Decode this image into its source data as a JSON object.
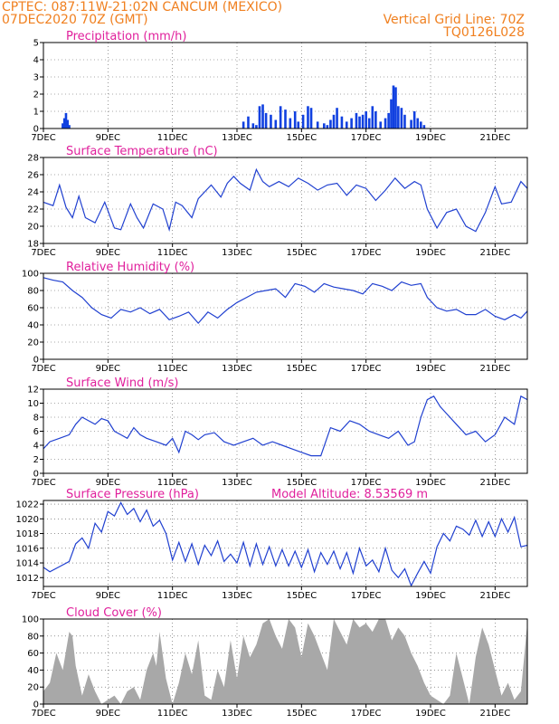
{
  "header": {
    "line1": "CPTEC:   087:11W-21:02N  CANCUM (MEXICO)",
    "line2": "07DEC2020 70Z (GMT)",
    "grid_note": "Vertical Grid Line: 70Z",
    "code": "TQ0126L028"
  },
  "colors": {
    "header": "#f08020",
    "title": "#e0209c",
    "line": "#2040d0",
    "bar": "#1040e0",
    "cloud": "#a8a8a8"
  },
  "chart_data": [
    {
      "id": "precip",
      "type": "bar",
      "title": "Precipitation (mm/h)",
      "xticks": [
        "7DEC",
        "9DEC",
        "11DEC",
        "13DEC",
        "15DEC",
        "17DEC",
        "19DEC",
        "21DEC"
      ],
      "ylim": [
        0,
        5
      ],
      "yticks": [
        0,
        1,
        2,
        3,
        4,
        5
      ],
      "x": [
        7.6,
        7.65,
        7.7,
        7.75,
        7.8,
        13.2,
        13.35,
        13.5,
        13.6,
        13.7,
        13.8,
        13.9,
        14.05,
        14.2,
        14.35,
        14.5,
        14.65,
        14.8,
        14.9,
        15.05,
        15.2,
        15.3,
        15.5,
        15.7,
        15.8,
        15.9,
        16.0,
        16.1,
        16.25,
        16.4,
        16.55,
        16.7,
        16.8,
        16.9,
        17.0,
        17.1,
        17.2,
        17.3,
        17.45,
        17.6,
        17.7,
        17.78,
        17.85,
        17.92,
        18.0,
        18.1,
        18.2,
        18.4,
        18.5,
        18.6,
        18.7,
        18.8
      ],
      "values": [
        0.3,
        0.6,
        0.9,
        0.5,
        0.2,
        0.4,
        0.7,
        0.3,
        0.2,
        1.3,
        1.4,
        0.9,
        0.8,
        0.5,
        1.3,
        1.1,
        0.6,
        1.0,
        0.4,
        0.8,
        1.3,
        1.2,
        0.4,
        0.3,
        0.2,
        0.5,
        0.8,
        1.2,
        0.7,
        0.4,
        0.6,
        0.9,
        0.7,
        0.8,
        1.0,
        0.6,
        1.3,
        1.0,
        0.4,
        0.6,
        0.9,
        1.7,
        2.5,
        2.4,
        1.3,
        1.2,
        0.8,
        0.5,
        1.0,
        0.6,
        0.4,
        0.2
      ]
    },
    {
      "id": "temp",
      "type": "line",
      "title": "Surface Temperature (nC)",
      "xticks": [
        "7DEC",
        "9DEC",
        "11DEC",
        "13DEC",
        "15DEC",
        "17DEC",
        "19DEC",
        "21DEC"
      ],
      "ylim": [
        18,
        28
      ],
      "yticks": [
        18,
        20,
        22,
        24,
        26,
        28
      ],
      "x": [
        7.0,
        7.3,
        7.5,
        7.7,
        7.9,
        8.1,
        8.3,
        8.6,
        8.9,
        9.2,
        9.4,
        9.7,
        9.9,
        10.1,
        10.4,
        10.7,
        10.9,
        11.1,
        11.3,
        11.6,
        11.8,
        12.0,
        12.2,
        12.5,
        12.7,
        12.9,
        13.1,
        13.4,
        13.6,
        13.8,
        14.0,
        14.3,
        14.6,
        14.9,
        15.2,
        15.5,
        15.8,
        16.1,
        16.4,
        16.7,
        17.0,
        17.3,
        17.6,
        17.9,
        18.2,
        18.5,
        18.7,
        18.9,
        19.2,
        19.5,
        19.8,
        20.1,
        20.4,
        20.7,
        21.0,
        21.2,
        21.5,
        21.8,
        22.0
      ],
      "values": [
        22.8,
        22.4,
        24.8,
        22.2,
        21.0,
        23.5,
        21.0,
        20.4,
        22.8,
        19.8,
        19.6,
        22.6,
        21.0,
        19.8,
        22.6,
        22.0,
        19.6,
        22.8,
        22.4,
        21.0,
        23.2,
        24.0,
        24.8,
        23.4,
        25.0,
        25.8,
        25.0,
        24.2,
        26.6,
        25.2,
        24.6,
        25.2,
        24.6,
        25.6,
        25.0,
        24.2,
        24.8,
        25.0,
        23.6,
        24.8,
        24.4,
        23.0,
        24.2,
        25.6,
        24.4,
        25.2,
        24.8,
        22.0,
        19.8,
        21.6,
        22.0,
        20.0,
        19.4,
        21.6,
        24.6,
        22.6,
        22.8,
        25.2,
        24.4
      ]
    },
    {
      "id": "rh",
      "type": "line",
      "title": "Relative Humidity (%)",
      "xticks": [
        "7DEC",
        "9DEC",
        "11DEC",
        "13DEC",
        "15DEC",
        "17DEC",
        "19DEC",
        "21DEC"
      ],
      "ylim": [
        0,
        100
      ],
      "yticks": [
        0,
        20,
        40,
        60,
        80,
        100
      ],
      "x": [
        7.0,
        7.3,
        7.6,
        7.9,
        8.2,
        8.5,
        8.8,
        9.1,
        9.4,
        9.7,
        10.0,
        10.3,
        10.6,
        10.9,
        11.2,
        11.5,
        11.8,
        12.1,
        12.4,
        12.7,
        13.0,
        13.3,
        13.6,
        13.9,
        14.2,
        14.5,
        14.8,
        15.1,
        15.4,
        15.7,
        16.0,
        16.3,
        16.6,
        16.9,
        17.2,
        17.5,
        17.8,
        18.1,
        18.4,
        18.7,
        18.9,
        19.2,
        19.5,
        19.8,
        20.1,
        20.4,
        20.7,
        21.0,
        21.3,
        21.6,
        21.8,
        22.0
      ],
      "values": [
        95,
        92,
        90,
        80,
        72,
        60,
        52,
        48,
        58,
        55,
        60,
        53,
        58,
        46,
        50,
        55,
        42,
        55,
        48,
        58,
        66,
        72,
        78,
        80,
        82,
        72,
        88,
        85,
        78,
        88,
        84,
        82,
        80,
        76,
        88,
        85,
        80,
        90,
        86,
        88,
        72,
        60,
        56,
        58,
        52,
        52,
        58,
        50,
        46,
        52,
        48,
        56
      ]
    },
    {
      "id": "wind",
      "type": "line",
      "title": "Surface Wind (m/s)",
      "xticks": [
        "7DEC",
        "9DEC",
        "11DEC",
        "13DEC",
        "15DEC",
        "17DEC",
        "19DEC",
        "21DEC"
      ],
      "ylim": [
        0,
        12
      ],
      "yticks": [
        0,
        2,
        4,
        6,
        8,
        10,
        12
      ],
      "x": [
        7.0,
        7.2,
        7.5,
        7.8,
        8.0,
        8.2,
        8.4,
        8.6,
        8.8,
        9.0,
        9.2,
        9.4,
        9.6,
        9.8,
        10.0,
        10.2,
        10.5,
        10.8,
        11.0,
        11.2,
        11.4,
        11.6,
        11.8,
        12.0,
        12.3,
        12.6,
        12.9,
        13.2,
        13.5,
        13.8,
        14.1,
        14.4,
        14.7,
        15.0,
        15.3,
        15.6,
        15.9,
        16.2,
        16.5,
        16.8,
        17.1,
        17.4,
        17.7,
        18.0,
        18.3,
        18.5,
        18.7,
        18.9,
        19.1,
        19.3,
        19.5,
        19.8,
        20.1,
        20.4,
        20.7,
        21.0,
        21.3,
        21.6,
        21.8,
        22.0
      ],
      "values": [
        3.5,
        4.5,
        5.0,
        5.5,
        7.0,
        8.0,
        7.5,
        7.0,
        7.8,
        7.5,
        6.0,
        5.5,
        5.0,
        6.5,
        5.5,
        5.0,
        4.5,
        4.0,
        5.0,
        3.0,
        6.0,
        5.5,
        4.8,
        5.5,
        5.8,
        4.5,
        4.0,
        4.5,
        5.0,
        4.0,
        4.5,
        4.0,
        3.5,
        3.0,
        2.5,
        2.5,
        6.5,
        6.0,
        7.5,
        7.0,
        6.0,
        5.5,
        5.0,
        6.0,
        4.0,
        4.5,
        8.0,
        10.5,
        11.0,
        9.5,
        8.5,
        7.0,
        5.5,
        6.0,
        4.5,
        5.5,
        8.0,
        7.0,
        11.0,
        10.5
      ]
    },
    {
      "id": "press",
      "type": "line",
      "title": "Surface Pressure (hPa)",
      "annotation": "Model Altitude: 8.53569 m",
      "xticks": [
        "7DEC",
        "9DEC",
        "11DEC",
        "13DEC",
        "15DEC",
        "17DEC",
        "19DEC",
        "21DEC"
      ],
      "ylim": [
        1010.8,
        1022.5
      ],
      "yticks": [
        1012,
        1014,
        1016,
        1018,
        1020,
        1022
      ],
      "x": [
        7.0,
        7.2,
        7.5,
        7.8,
        8.0,
        8.2,
        8.4,
        8.6,
        8.8,
        9.0,
        9.2,
        9.4,
        9.6,
        9.8,
        10.0,
        10.2,
        10.4,
        10.6,
        10.8,
        11.0,
        11.2,
        11.4,
        11.6,
        11.8,
        12.0,
        12.2,
        12.4,
        12.6,
        12.8,
        13.0,
        13.2,
        13.4,
        13.6,
        13.8,
        14.0,
        14.2,
        14.4,
        14.6,
        14.8,
        15.0,
        15.2,
        15.4,
        15.6,
        15.8,
        16.0,
        16.2,
        16.4,
        16.6,
        16.8,
        17.0,
        17.2,
        17.4,
        17.6,
        17.8,
        18.0,
        18.2,
        18.4,
        18.6,
        18.8,
        19.0,
        19.2,
        19.4,
        19.6,
        19.8,
        20.0,
        20.2,
        20.4,
        20.6,
        20.8,
        21.0,
        21.2,
        21.4,
        21.6,
        21.8,
        22.0
      ],
      "values": [
        1013.4,
        1012.8,
        1013.5,
        1014.2,
        1016.6,
        1017.4,
        1016.0,
        1019.4,
        1018.2,
        1021.0,
        1020.4,
        1022.2,
        1020.6,
        1021.4,
        1019.6,
        1021.2,
        1019.0,
        1019.8,
        1018.0,
        1014.4,
        1016.8,
        1014.2,
        1016.6,
        1013.8,
        1016.4,
        1015.0,
        1017.0,
        1014.2,
        1015.2,
        1014.0,
        1016.8,
        1013.6,
        1016.6,
        1013.8,
        1016.2,
        1013.6,
        1015.8,
        1013.6,
        1015.6,
        1013.4,
        1015.8,
        1012.8,
        1015.4,
        1013.8,
        1015.6,
        1013.2,
        1015.4,
        1012.6,
        1016.0,
        1013.6,
        1014.4,
        1012.8,
        1016.0,
        1013.0,
        1012.0,
        1013.2,
        1010.9,
        1012.6,
        1014.2,
        1012.6,
        1016.2,
        1018.0,
        1017.0,
        1019.0,
        1018.6,
        1017.8,
        1019.8,
        1017.6,
        1019.6,
        1017.6,
        1020.0,
        1018.2,
        1020.2,
        1016.2,
        1016.4
      ]
    },
    {
      "id": "cloud",
      "type": "area",
      "title": "Cloud Cover (%)",
      "xticks": [
        "7DEC",
        "9DEC",
        "11DEC",
        "13DEC",
        "15DEC",
        "17DEC",
        "19DEC",
        "21DEC"
      ],
      "ylim": [
        0,
        100
      ],
      "yticks": [
        0,
        20,
        40,
        60,
        80,
        100
      ],
      "x": [
        7.0,
        7.2,
        7.4,
        7.6,
        7.8,
        7.9,
        8.0,
        8.2,
        8.4,
        8.6,
        8.8,
        9.0,
        9.2,
        9.4,
        9.6,
        9.8,
        10.0,
        10.2,
        10.4,
        10.5,
        10.6,
        10.8,
        11.0,
        11.2,
        11.4,
        11.6,
        11.8,
        12.0,
        12.2,
        12.4,
        12.6,
        12.8,
        13.0,
        13.2,
        13.4,
        13.6,
        13.8,
        14.0,
        14.2,
        14.4,
        14.6,
        14.8,
        15.0,
        15.2,
        15.4,
        15.6,
        15.8,
        16.0,
        16.2,
        16.4,
        16.6,
        16.8,
        17.0,
        17.2,
        17.4,
        17.6,
        17.8,
        18.0,
        18.2,
        18.4,
        18.6,
        18.8,
        19.0,
        19.2,
        19.4,
        19.6,
        19.8,
        20.0,
        20.2,
        20.4,
        20.6,
        20.8,
        21.0,
        21.2,
        21.4,
        21.6,
        21.8,
        22.0
      ],
      "values": [
        15,
        25,
        60,
        40,
        85,
        80,
        45,
        10,
        35,
        15,
        0,
        5,
        10,
        0,
        15,
        20,
        5,
        40,
        60,
        45,
        85,
        30,
        0,
        25,
        60,
        35,
        75,
        10,
        5,
        40,
        20,
        75,
        30,
        80,
        55,
        70,
        95,
        100,
        80,
        65,
        100,
        90,
        55,
        95,
        80,
        60,
        40,
        100,
        85,
        70,
        100,
        90,
        95,
        85,
        100,
        100,
        75,
        90,
        80,
        60,
        45,
        25,
        10,
        5,
        0,
        10,
        60,
        30,
        0,
        55,
        90,
        70,
        40,
        10,
        25,
        5,
        15,
        95
      ]
    }
  ]
}
